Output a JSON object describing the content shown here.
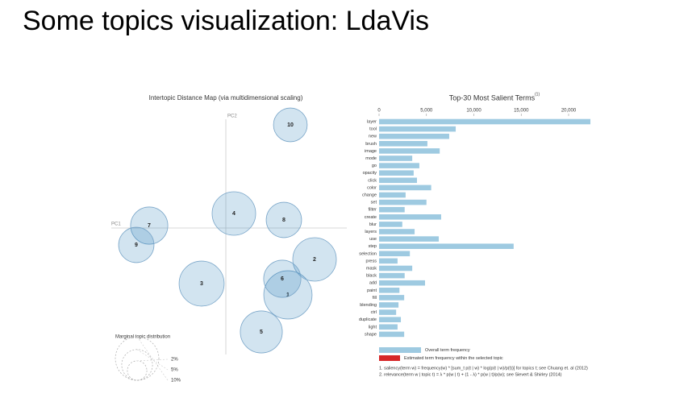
{
  "header": {
    "title": "Some topics visualization: LdaVis"
  },
  "chart_data": [
    {
      "type": "bubble",
      "title": "Intertopic Distance Map (via multidimensional scaling)",
      "xlabel": "PC1",
      "ylabel": "PC2",
      "xlim": [
        -0.3,
        0.3
      ],
      "ylim": [
        -0.32,
        0.3
      ],
      "labels": [
        "1",
        "2",
        "3",
        "4",
        "5",
        "6",
        "7",
        "8",
        "9",
        "10"
      ],
      "x": [
        0.154,
        0.22,
        -0.06,
        0.02,
        0.088,
        0.14,
        -0.19,
        0.144,
        -0.222,
        0.16
      ],
      "y": [
        -0.166,
        -0.078,
        -0.138,
        0.036,
        -0.258,
        -0.126,
        0.006,
        0.02,
        -0.042,
        0.256
      ],
      "sizes": [
        12.3,
        10,
        10.7,
        10,
        9.3,
        7.3,
        7.3,
        6.6,
        6.6,
        6
      ],
      "color": "#1f77b4",
      "size_legend": {
        "title": "Marginal topic distribution",
        "values": [
          2,
          5,
          10
        ],
        "labels": [
          "2%",
          "5%",
          "10%"
        ]
      }
    },
    {
      "type": "bar",
      "title": "Top-30 Most Salient Terms",
      "title_note": "(1)",
      "categories": [
        "layer",
        "tool",
        "new",
        "brush",
        "image",
        "mode",
        "go",
        "opacity",
        "click",
        "color",
        "change",
        "set",
        "filter",
        "create",
        "blur",
        "layers",
        "use",
        "step",
        "selection",
        "press",
        "mask",
        "black",
        "add",
        "paint",
        "fill",
        "blending",
        "ctrl",
        "duplicate",
        "light",
        "shape"
      ],
      "series": [
        {
          "name": "Overall term frequency",
          "color": "#9ecae1",
          "values": [
            22300,
            8090,
            7400,
            5100,
            6400,
            3500,
            4250,
            3650,
            4000,
            5500,
            2800,
            5000,
            2700,
            6550,
            2450,
            3750,
            6300,
            14200,
            3250,
            1950,
            3500,
            2700,
            4850,
            2150,
            2650,
            2050,
            1800,
            2300,
            1950,
            2650
          ]
        }
      ],
      "legend_items": [
        {
          "name": "Estimated term frequency within the selected topic",
          "color": "#d62728"
        }
      ],
      "xlim": [
        0,
        22300
      ],
      "xticks": [
        0,
        {
          "value": 5000,
          "label": "5,000"
        },
        {
          "value": 10000,
          "label": "10,000"
        },
        {
          "value": 15000,
          "label": "15,000"
        },
        {
          "value": 20000,
          "label": "20,000"
        }
      ],
      "footnotes": [
        "1. saliency(term w) = frequency(w) * [sum_t p(t | w) * log(p(t | w)/p(t))] for topics t; see Chuang et. al (2012)",
        "2. relevance(term w | topic t) = λ * p(w | t) + (1 - λ) * p(w | t)/p(w); see Sievert & Shirley (2014)"
      ]
    }
  ]
}
